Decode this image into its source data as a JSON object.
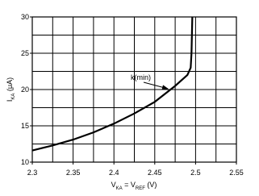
{
  "chart_data": {
    "type": "line",
    "ylabel": [
      "I",
      "KA",
      " (μA)"
    ],
    "xlabel": [
      "V",
      "KA",
      " = V",
      "REF",
      " (V)"
    ],
    "annotation": "k(min)",
    "x": [
      2.3,
      2.325,
      2.35,
      2.375,
      2.4,
      2.425,
      2.45,
      2.475,
      2.49,
      2.494,
      2.495,
      2.496
    ],
    "series": [
      {
        "color": "#000000",
        "values": [
          11.6,
          12.3,
          13.1,
          14.1,
          15.3,
          16.7,
          18.3,
          20.5,
          22,
          23,
          25,
          30
        ]
      }
    ],
    "xlim": [
      2.3,
      2.55
    ],
    "ylim": [
      10,
      30
    ],
    "xticks": [
      {
        "value": 2.3,
        "label": "2.3"
      },
      2.35,
      {
        "value": 2.4,
        "label": "2.4"
      },
      2.45,
      {
        "value": 2.5,
        "label": "2.5"
      },
      2.55
    ],
    "yticks": [
      10,
      15,
      20,
      25,
      30
    ],
    "xgrid": [
      2.3,
      2.325,
      2.35,
      2.375,
      2.4,
      2.425,
      2.45,
      2.475,
      2.5,
      2.525,
      2.55
    ],
    "ygrid": [
      10,
      12.5,
      15,
      17.5,
      20,
      22.5,
      25,
      27.5,
      30
    ],
    "grid": true
  }
}
